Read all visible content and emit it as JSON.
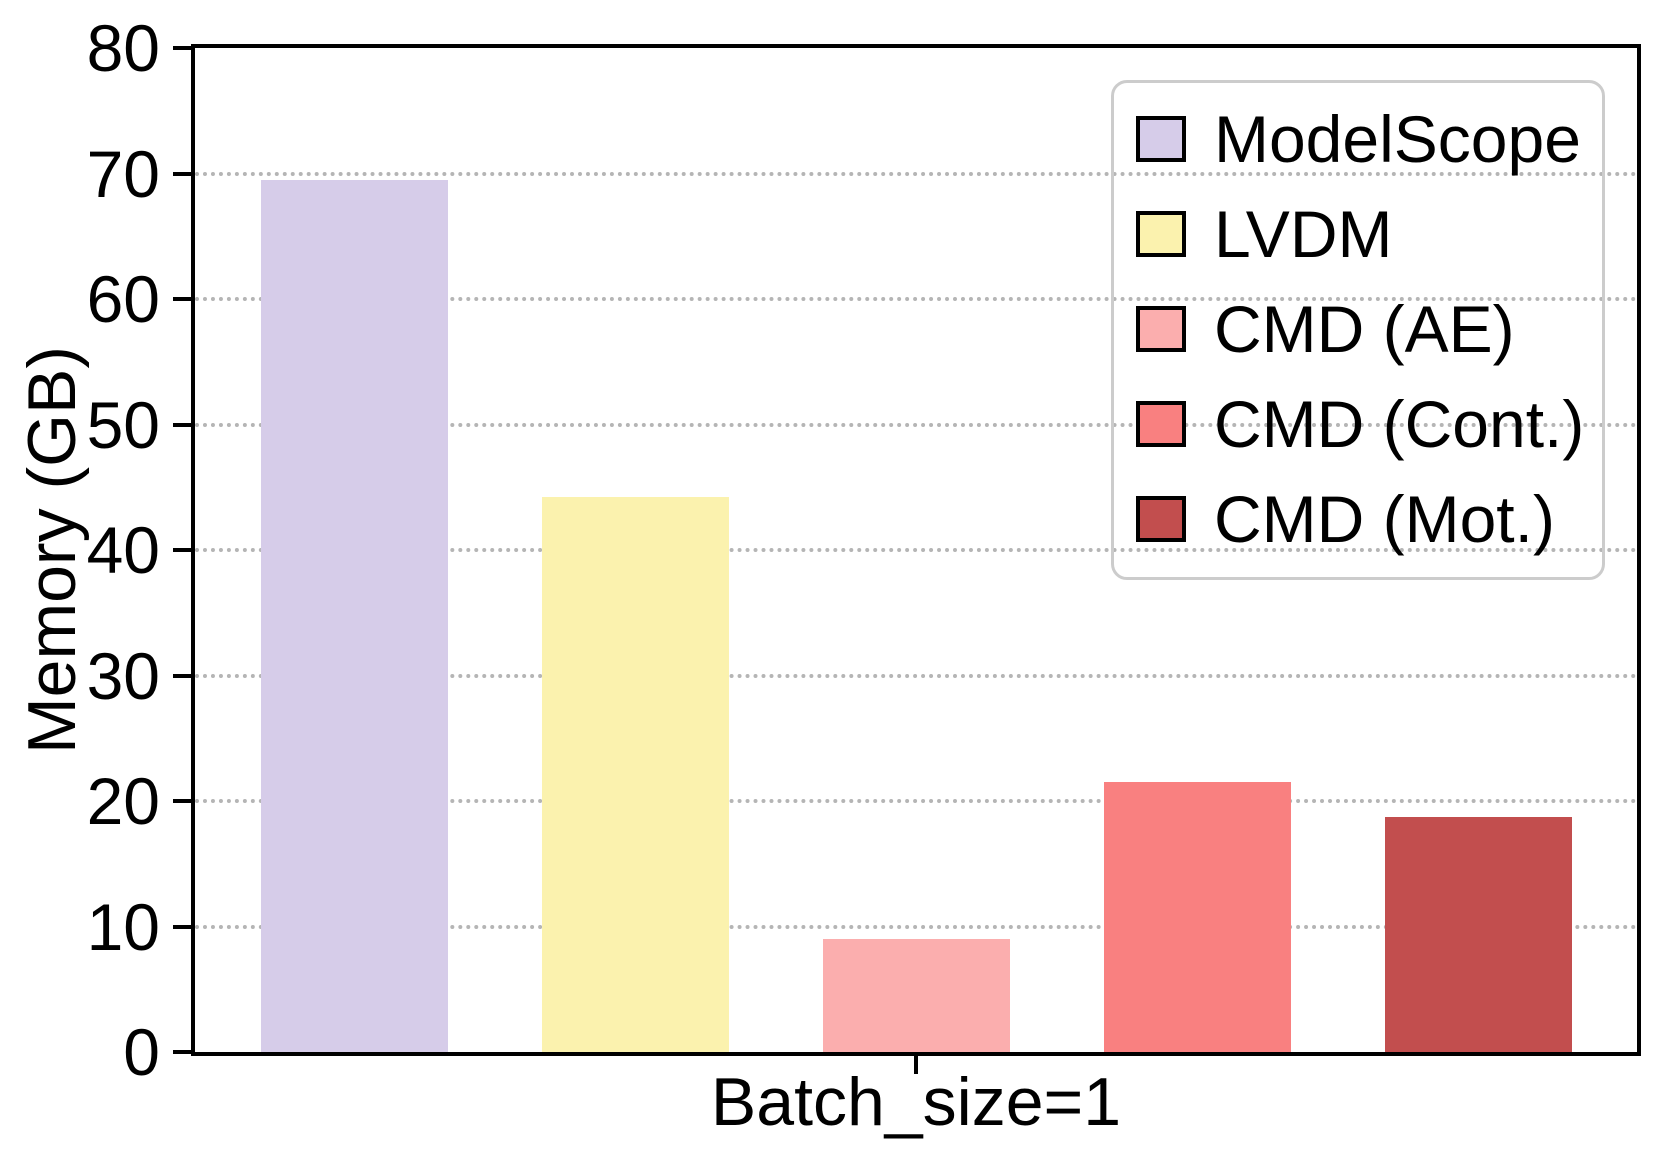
{
  "chart_data": {
    "type": "bar",
    "title": "",
    "xlabel": "",
    "ylabel": "Memory (GB)",
    "categories": [
      "Batch_size=1"
    ],
    "ylim": [
      0,
      80
    ],
    "yticks": [
      0,
      10,
      20,
      30,
      40,
      50,
      60,
      70,
      80
    ],
    "grid": "horizontal dotted",
    "legend_position": "upper right",
    "series": [
      {
        "name": "ModelScope",
        "color": "#D6CCE9",
        "values": [
          69.5
        ]
      },
      {
        "name": "LVDM",
        "color": "#FBF2AE",
        "values": [
          44.2
        ]
      },
      {
        "name": "CMD (AE)",
        "color": "#FBAEAE",
        "values": [
          9.0
        ]
      },
      {
        "name": "CMD (Cont.)",
        "color": "#F98080",
        "values": [
          21.5
        ]
      },
      {
        "name": "CMD (Mot.)",
        "color": "#C24E4E",
        "values": [
          18.7
        ]
      }
    ]
  },
  "colors": {
    "axis": "#000000",
    "grid": "#B5B5B5",
    "legend_border": "#CCCCCC",
    "text": "#000000",
    "background": "#FFFFFF"
  }
}
